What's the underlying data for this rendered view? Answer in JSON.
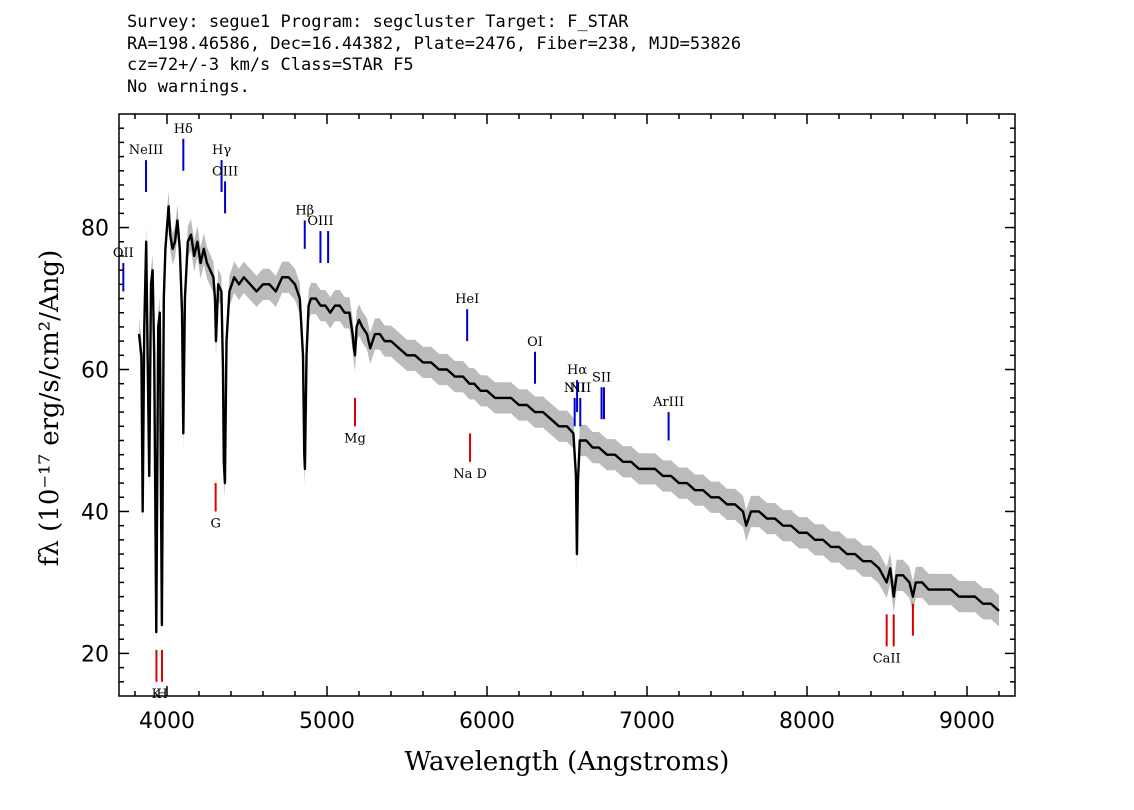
{
  "header": {
    "line1": "Survey: segue1 Program: segcluster Target: F_STAR",
    "line2": "RA=198.46586, Dec=16.44382, Plate=2476, Fiber=238, MJD=53826",
    "line3": "cz=72+/-3 km/s Class=STAR F5",
    "line4": "No warnings."
  },
  "chart_data": {
    "type": "line",
    "xlabel": "Wavelength (Angstroms)",
    "ylabel": "fλ (10⁻¹⁷ erg/s/cm²/Ang)",
    "xlim": [
      3700,
      9300
    ],
    "ylim": [
      14,
      96
    ],
    "xticks": [
      4000,
      5000,
      6000,
      7000,
      8000,
      9000
    ],
    "yticks": [
      20,
      40,
      60,
      80
    ],
    "colors": {
      "flux": "#000000",
      "error_band": "#bbbbbb",
      "emission": "#0000cc",
      "absorption": "#dd0000"
    },
    "spectrum": [
      [
        3825,
        65
      ],
      [
        3840,
        62
      ],
      [
        3848,
        40
      ],
      [
        3858,
        66
      ],
      [
        3870,
        78
      ],
      [
        3880,
        60
      ],
      [
        3889,
        45
      ],
      [
        3900,
        72
      ],
      [
        3910,
        74
      ],
      [
        3920,
        62
      ],
      [
        3933,
        23
      ],
      [
        3945,
        66
      ],
      [
        3955,
        68
      ],
      [
        3968,
        24
      ],
      [
        3980,
        70
      ],
      [
        3990,
        77
      ],
      [
        4000,
        80
      ],
      [
        4010,
        83
      ],
      [
        4020,
        79
      ],
      [
        4035,
        77
      ],
      [
        4050,
        78
      ],
      [
        4065,
        81
      ],
      [
        4080,
        77
      ],
      [
        4094,
        68
      ],
      [
        4102,
        51
      ],
      [
        4112,
        70
      ],
      [
        4130,
        78
      ],
      [
        4150,
        79
      ],
      [
        4170,
        76
      ],
      [
        4190,
        78
      ],
      [
        4210,
        75
      ],
      [
        4230,
        77
      ],
      [
        4250,
        75
      ],
      [
        4270,
        74
      ],
      [
        4290,
        73
      ],
      [
        4300,
        70
      ],
      [
        4306,
        64
      ],
      [
        4320,
        72
      ],
      [
        4340,
        71
      ],
      [
        4350,
        60
      ],
      [
        4355,
        47
      ],
      [
        4362,
        44
      ],
      [
        4372,
        64
      ],
      [
        4390,
        71
      ],
      [
        4420,
        73
      ],
      [
        4450,
        72
      ],
      [
        4480,
        73
      ],
      [
        4520,
        72
      ],
      [
        4560,
        71
      ],
      [
        4600,
        72
      ],
      [
        4640,
        72
      ],
      [
        4680,
        71
      ],
      [
        4720,
        73
      ],
      [
        4760,
        73
      ],
      [
        4800,
        72
      ],
      [
        4830,
        70
      ],
      [
        4850,
        62
      ],
      [
        4858,
        48
      ],
      [
        4862,
        46
      ],
      [
        4872,
        62
      ],
      [
        4885,
        69
      ],
      [
        4900,
        70
      ],
      [
        4930,
        70
      ],
      [
        4960,
        69
      ],
      [
        4990,
        69
      ],
      [
        5020,
        68
      ],
      [
        5050,
        69
      ],
      [
        5080,
        69
      ],
      [
        5110,
        68
      ],
      [
        5140,
        68
      ],
      [
        5160,
        65
      ],
      [
        5168,
        63
      ],
      [
        5175,
        62
      ],
      [
        5185,
        66
      ],
      [
        5200,
        67
      ],
      [
        5220,
        66
      ],
      [
        5250,
        65
      ],
      [
        5270,
        63
      ],
      [
        5300,
        65
      ],
      [
        5330,
        65
      ],
      [
        5360,
        64
      ],
      [
        5400,
        64
      ],
      [
        5450,
        63
      ],
      [
        5500,
        62
      ],
      [
        5550,
        62
      ],
      [
        5600,
        61
      ],
      [
        5650,
        61
      ],
      [
        5700,
        60
      ],
      [
        5750,
        60
      ],
      [
        5800,
        59
      ],
      [
        5850,
        59
      ],
      [
        5890,
        58
      ],
      [
        5896,
        58
      ],
      [
        5920,
        58
      ],
      [
        5960,
        57
      ],
      [
        6000,
        57
      ],
      [
        6050,
        56
      ],
      [
        6100,
        56
      ],
      [
        6150,
        56
      ],
      [
        6200,
        55
      ],
      [
        6250,
        55
      ],
      [
        6300,
        54
      ],
      [
        6350,
        54
      ],
      [
        6400,
        53
      ],
      [
        6450,
        52
      ],
      [
        6500,
        52
      ],
      [
        6540,
        51
      ],
      [
        6556,
        45
      ],
      [
        6562,
        34
      ],
      [
        6568,
        44
      ],
      [
        6580,
        50
      ],
      [
        6620,
        50
      ],
      [
        6660,
        49
      ],
      [
        6700,
        49
      ],
      [
        6750,
        48
      ],
      [
        6800,
        48
      ],
      [
        6850,
        47
      ],
      [
        6900,
        47
      ],
      [
        6950,
        46
      ],
      [
        7000,
        46
      ],
      [
        7050,
        46
      ],
      [
        7100,
        45
      ],
      [
        7150,
        45
      ],
      [
        7200,
        44
      ],
      [
        7250,
        44
      ],
      [
        7300,
        43
      ],
      [
        7350,
        43
      ],
      [
        7400,
        42
      ],
      [
        7450,
        42
      ],
      [
        7500,
        41
      ],
      [
        7550,
        41
      ],
      [
        7600,
        40
      ],
      [
        7620,
        38
      ],
      [
        7650,
        40
      ],
      [
        7700,
        40
      ],
      [
        7750,
        39
      ],
      [
        7800,
        39
      ],
      [
        7850,
        38
      ],
      [
        7900,
        38
      ],
      [
        7950,
        37
      ],
      [
        8000,
        37
      ],
      [
        8050,
        36
      ],
      [
        8100,
        36
      ],
      [
        8150,
        35
      ],
      [
        8200,
        35
      ],
      [
        8250,
        34
      ],
      [
        8300,
        34
      ],
      [
        8350,
        33
      ],
      [
        8400,
        33
      ],
      [
        8450,
        32
      ],
      [
        8498,
        30
      ],
      [
        8520,
        32
      ],
      [
        8542,
        28
      ],
      [
        8560,
        31
      ],
      [
        8600,
        31
      ],
      [
        8640,
        30
      ],
      [
        8662,
        28
      ],
      [
        8680,
        30
      ],
      [
        8720,
        30
      ],
      [
        8760,
        29
      ],
      [
        8800,
        29
      ],
      [
        8850,
        29
      ],
      [
        8900,
        29
      ],
      [
        8950,
        28
      ],
      [
        9000,
        28
      ],
      [
        9050,
        28
      ],
      [
        9100,
        27
      ],
      [
        9150,
        27
      ],
      [
        9200,
        26
      ]
    ],
    "emission_lines": [
      {
        "label": "OII",
        "x": 3727,
        "y": [
          75,
          71
        ]
      },
      {
        "label": "NeIII",
        "x": 3869,
        "y": [
          89.5,
          85
        ]
      },
      {
        "label": "Hδ",
        "x": 4102,
        "y": [
          92.5,
          88
        ]
      },
      {
        "label": "Hγ",
        "x": 4341,
        "y": [
          89.5,
          85
        ]
      },
      {
        "label": "OIII",
        "x": 4363,
        "y": [
          86.5,
          82
        ]
      },
      {
        "label": "Hβ",
        "x": 4861,
        "y": [
          81,
          77
        ]
      },
      {
        "label": "OIII",
        "x": 4959,
        "y": [
          79.5,
          75
        ]
      },
      {
        "label": "",
        "x": 5007,
        "y": [
          79.5,
          75
        ]
      },
      {
        "label": "HeI",
        "x": 5876,
        "y": [
          68.5,
          64
        ]
      },
      {
        "label": "OI",
        "x": 6300,
        "y": [
          62.5,
          58
        ]
      },
      {
        "label": "NII",
        "x": 6548,
        "y": [
          56,
          52
        ]
      },
      {
        "label": "Hα",
        "x": 6563,
        "y": [
          58.5,
          54
        ]
      },
      {
        "label": "NII",
        "x": 6583,
        "y": [
          56,
          52
        ]
      },
      {
        "label": "SII",
        "x": 6716,
        "y": [
          57.5,
          53
        ]
      },
      {
        "label": "",
        "x": 6731,
        "y": [
          57.5,
          53
        ]
      },
      {
        "label": "ArIII",
        "x": 7135,
        "y": [
          54,
          50
        ]
      }
    ],
    "absorption_lines": [
      {
        "label": "K",
        "x": 3934,
        "y": [
          20.5,
          16
        ]
      },
      {
        "label": "H",
        "x": 3969,
        "y": [
          20.5,
          16
        ]
      },
      {
        "label": "G",
        "x": 4304,
        "y": [
          44,
          40
        ]
      },
      {
        "label": "Mg",
        "x": 5175,
        "y": [
          56,
          52
        ]
      },
      {
        "label": "Na D",
        "x": 5894,
        "y": [
          51,
          47
        ]
      },
      {
        "label": "CaII",
        "x": 8498,
        "y": [
          25.5,
          21
        ]
      },
      {
        "label": "",
        "x": 8542,
        "y": [
          25.5,
          21
        ]
      },
      {
        "label": "",
        "x": 8662,
        "y": [
          27,
          22.5
        ]
      }
    ]
  }
}
